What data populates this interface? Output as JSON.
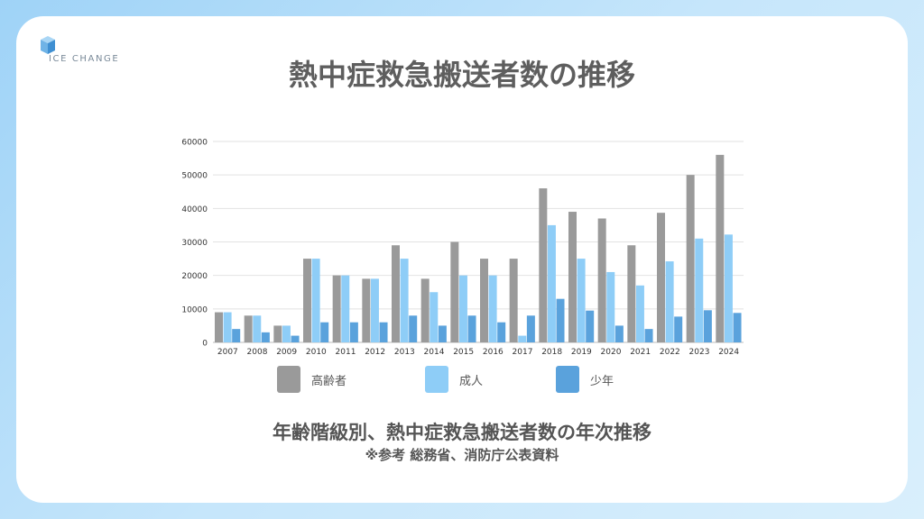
{
  "brand": {
    "name": "ICE CHANGE",
    "accent": "#5aa7e6"
  },
  "title": "熱中症救急搬送者数の推移",
  "caption": "年齢階級別、熱中症救急搬送者数の年次推移",
  "source": "※参考 総務省、消防庁公表資料",
  "chart_data": {
    "type": "bar",
    "categories": [
      "2007",
      "2008",
      "2009",
      "2010",
      "2011",
      "2012",
      "2013",
      "2014",
      "2015",
      "2016",
      "2017",
      "2018",
      "2019",
      "2020",
      "2021",
      "2022",
      "2023",
      "2024"
    ],
    "series": [
      {
        "name": "高齢者",
        "color": "#9a9a9a",
        "values": [
          9000,
          8000,
          5000,
          25000,
          20000,
          19000,
          29000,
          19000,
          30000,
          25000,
          25000,
          46000,
          39000,
          37000,
          29000,
          38700,
          50000,
          56000
        ]
      },
      {
        "name": "成人",
        "color": "#8ecdf7",
        "values": [
          9000,
          8000,
          5000,
          25000,
          20000,
          19000,
          25000,
          15000,
          20000,
          20000,
          2000,
          35000,
          25000,
          21000,
          17000,
          24200,
          31000,
          32200
        ]
      },
      {
        "name": "少年",
        "color": "#5aa2dc",
        "values": [
          4000,
          3000,
          2000,
          6000,
          6000,
          6000,
          8000,
          5000,
          8000,
          6000,
          8000,
          13000,
          9500,
          5000,
          4000,
          7700,
          9600,
          8800
        ]
      }
    ],
    "yticks": [
      0,
      10000,
      20000,
      30000,
      40000,
      50000,
      60000
    ],
    "ylim": [
      0,
      60000
    ],
    "grid": true,
    "legend_position": "bottom"
  }
}
